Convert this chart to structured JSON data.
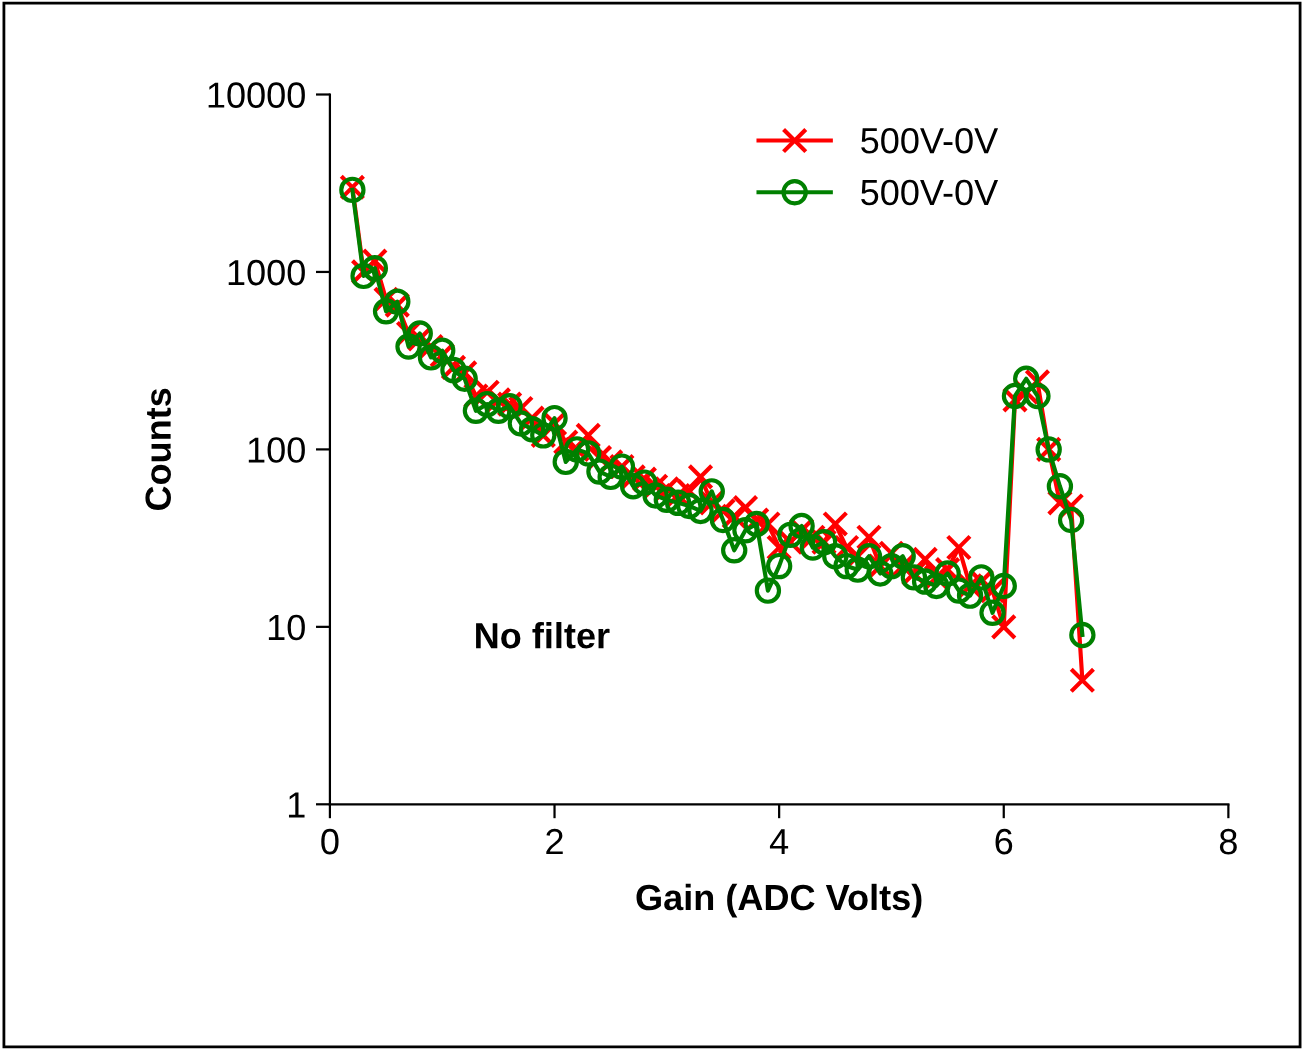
{
  "chart_data": {
    "type": "line",
    "xlabel": "Gain (ADC Volts)",
    "ylabel": "Counts",
    "log": "y",
    "xlim": [
      0,
      8
    ],
    "xticks": [
      0,
      2,
      4,
      6,
      8
    ],
    "ylim": [
      1,
      10000
    ],
    "yticks": [
      1,
      10,
      100,
      1000,
      10000
    ],
    "grid": false,
    "legend": "top right",
    "annotations": [
      "No filter"
    ],
    "x": [
      0.2,
      0.3,
      0.4,
      0.5,
      0.6,
      0.7,
      0.8,
      0.9,
      1.0,
      1.1,
      1.2,
      1.3,
      1.4,
      1.5,
      1.6,
      1.7,
      1.8,
      1.9,
      2.0,
      2.1,
      2.2,
      2.3,
      2.4,
      2.5,
      2.6,
      2.7,
      2.8,
      2.9,
      3.0,
      3.1,
      3.2,
      3.3,
      3.4,
      3.5,
      3.6,
      3.7,
      3.8,
      3.9,
      4.0,
      4.1,
      4.2,
      4.3,
      4.4,
      4.5,
      4.6,
      4.7,
      4.8,
      4.9,
      5.0,
      5.1,
      5.2,
      5.3,
      5.4,
      5.5,
      5.6,
      5.7,
      5.8,
      5.9,
      6.0,
      6.1,
      6.2,
      6.3,
      6.4,
      6.5,
      6.6,
      6.7
    ],
    "series": [
      {
        "name": "500V-0V",
        "color": "#ff0000",
        "marker": "cross",
        "values": [
          3000,
          1000,
          1150,
          700,
          650,
          450,
          420,
          380,
          340,
          290,
          270,
          200,
          210,
          190,
          180,
          170,
          150,
          120,
          140,
          110,
          100,
          120,
          90,
          85,
          80,
          70,
          68,
          62,
          60,
          55,
          58,
          70,
          50,
          45,
          42,
          47,
          40,
          38,
          28,
          30,
          35,
          32,
          30,
          38,
          28,
          25,
          32,
          22,
          26,
          22,
          20,
          24,
          19,
          21,
          28,
          17,
          18,
          16,
          10,
          190,
          210,
          240,
          100,
          50,
          48,
          5
        ]
      },
      {
        "name": "500V-0V",
        "color": "#008000",
        "marker": "circle",
        "values": [
          2900,
          950,
          1050,
          600,
          680,
          380,
          450,
          330,
          360,
          280,
          250,
          165,
          180,
          165,
          175,
          140,
          130,
          120,
          150,
          85,
          100,
          95,
          75,
          70,
          80,
          62,
          65,
          55,
          52,
          50,
          48,
          45,
          58,
          40,
          27,
          35,
          38,
          16,
          22,
          33,
          37,
          28,
          30,
          25,
          22,
          21,
          25,
          20,
          22,
          25,
          19,
          18,
          17,
          20,
          16,
          15,
          19,
          12,
          17,
          200,
          250,
          200,
          100,
          62,
          40,
          9
        ]
      }
    ]
  }
}
